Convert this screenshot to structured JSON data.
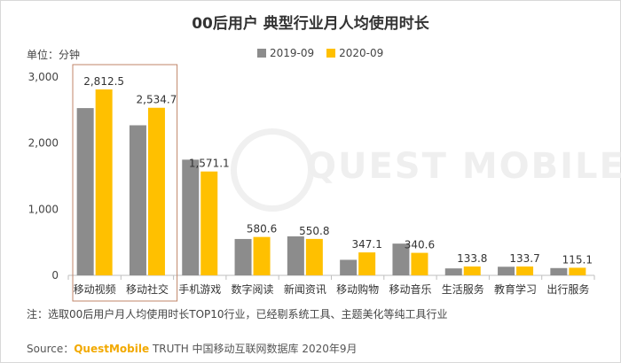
{
  "title": "00后用户 典型行业月人均使用时长",
  "unit_label": "单位：分钟",
  "note": "注：选取00后用户月人均使用时长TOP10行业，已经剔系统工具、主题美化等纯工具行业",
  "source": {
    "prefix": "Source：",
    "brand": "QuestMobile",
    "rest": " TRUTH 中国移动互联网数据库 2020年9月"
  },
  "watermark": "QUEST MOBILE",
  "colors": {
    "series_2019": "#8c8c8c",
    "series_2020": "#ffc000",
    "highlight": "#c0866a"
  },
  "chart_data": {
    "type": "bar",
    "title": "00后用户 典型行业月人均使用时长",
    "xlabel": "",
    "ylabel": "单位：分钟",
    "ylim": [
      0,
      3000
    ],
    "yticks": [
      0,
      1000,
      2000,
      3000
    ],
    "ytick_labels": [
      "0",
      "1,000",
      "2,000",
      "3,000"
    ],
    "grid": false,
    "legend": "top-center",
    "categories": [
      "移动视频",
      "移动社交",
      "手机游戏",
      "数字阅读",
      "新闻资讯",
      "移动购物",
      "移动音乐",
      "生活服务",
      "教育学习",
      "出行服务"
    ],
    "series": [
      {
        "name": "2019-09",
        "values": [
          2530,
          2270,
          1750,
          550,
          590,
          235,
          480,
          105,
          130,
          110
        ]
      },
      {
        "name": "2020-09",
        "values": [
          2812.5,
          2534.7,
          1571.1,
          580.6,
          550.8,
          347.1,
          340.6,
          133.8,
          133.7,
          115.1
        ]
      }
    ],
    "data_labels": [
      "2,812.5",
      "2,534.7",
      "1,571.1",
      "580.6",
      "550.8",
      "347.1",
      "340.6",
      "133.8",
      "133.7",
      "115.1"
    ]
  }
}
